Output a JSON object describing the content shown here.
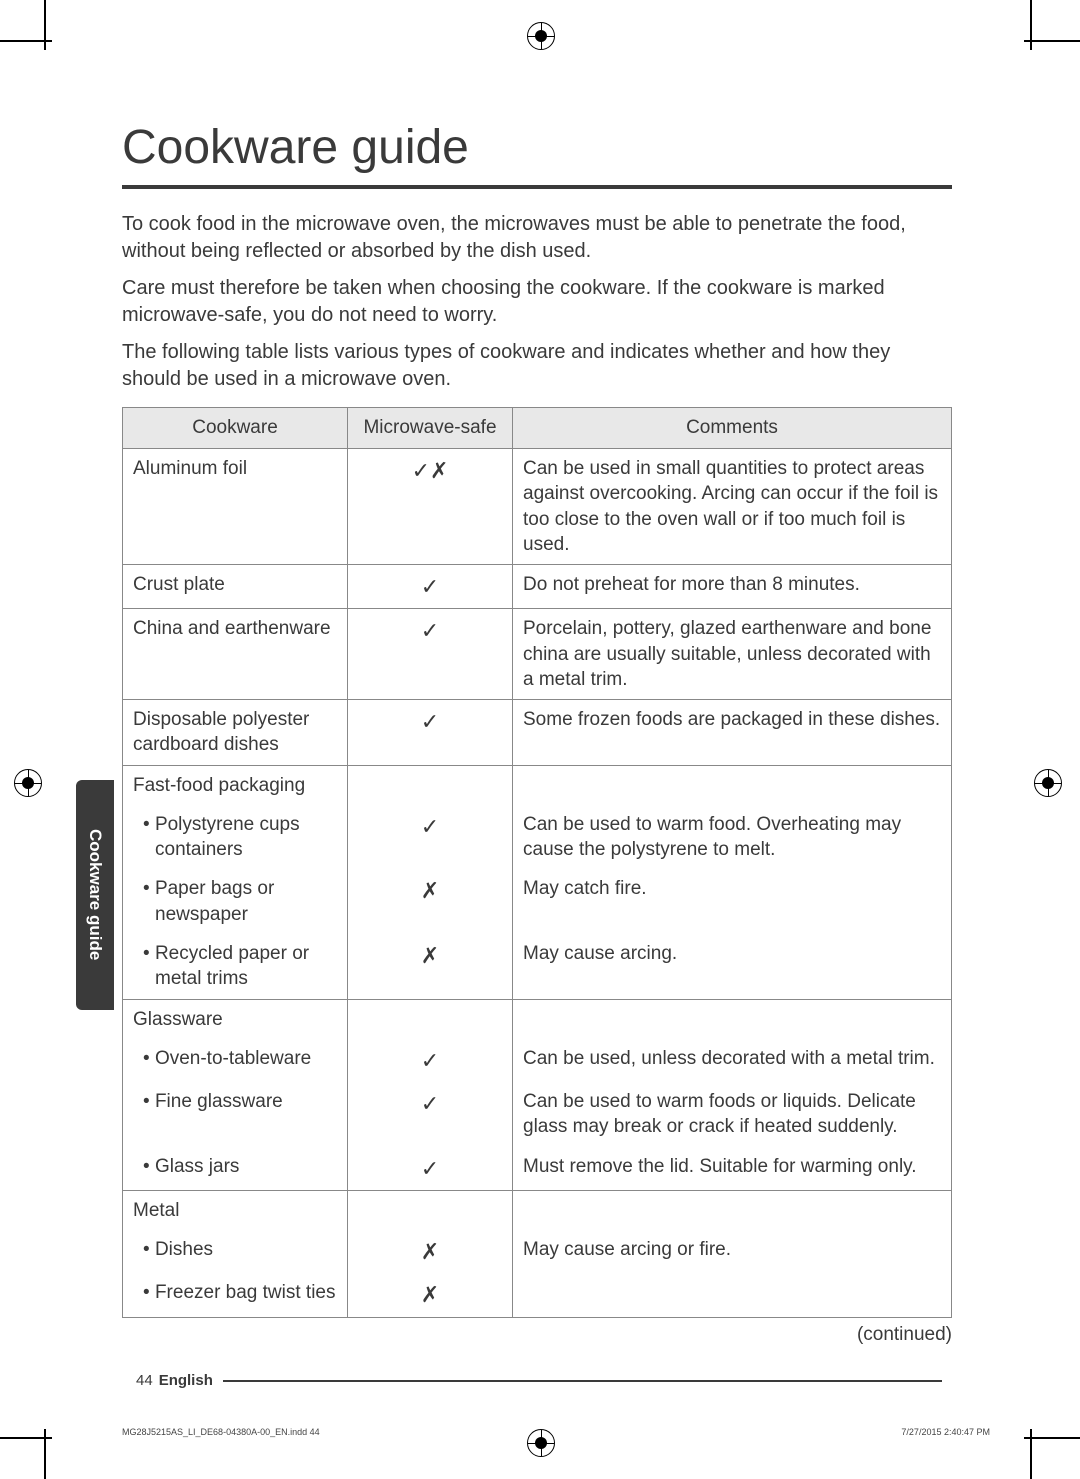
{
  "title": "Cookware guide",
  "intro": {
    "p1": "To cook food in the microwave oven, the microwaves must be able to penetrate the food, without being reflected or absorbed by the dish used.",
    "p2": "Care must therefore be taken when choosing the cookware. If the cookware is marked microwave-safe, you do not need to worry.",
    "p3": "The following table lists various types of cookware and indicates whether and how they should be used in a microwave oven."
  },
  "table": {
    "headers": {
      "cw": "Cookware",
      "ms": "Microwave-safe",
      "cm": "Comments"
    },
    "rows": [
      {
        "cw": "Aluminum foil",
        "ms": "✓✗",
        "cm": "Can be used in small quantities to protect areas against overcooking. Arcing can occur if the foil is too close to the oven wall or if too much foil is used."
      },
      {
        "cw": "Crust plate",
        "ms": "✓",
        "cm": "Do not preheat for more than 8 minutes."
      },
      {
        "cw": "China and earthenware",
        "ms": "✓",
        "cm": "Porcelain, pottery, glazed earthenware and bone china are usually suitable, unless decorated with a metal trim."
      },
      {
        "cw": "Disposable polyester cardboard dishes",
        "ms": "✓",
        "cm": "Some frozen foods are packaged in these dishes."
      },
      {
        "group": "Fast-food packaging",
        "items": [
          {
            "cw": "Polystyrene cups containers",
            "ms": "✓",
            "cm": "Can be used to warm food. Overheating may cause the polystyrene to melt."
          },
          {
            "cw": "Paper bags or newspaper",
            "ms": "✗",
            "cm": "May catch fire."
          },
          {
            "cw": "Recycled paper or metal trims",
            "ms": "✗",
            "cm": "May cause arcing."
          }
        ]
      },
      {
        "group": "Glassware",
        "items": [
          {
            "cw": "Oven-to-tableware",
            "ms": "✓",
            "cm": "Can be used, unless decorated with a metal trim."
          },
          {
            "cw": "Fine glassware",
            "ms": "✓",
            "cm": "Can be used to warm foods or liquids. Delicate glass may break or crack if heated suddenly."
          },
          {
            "cw": "Glass jars",
            "ms": "✓",
            "cm": "Must remove the lid. Suitable for warming only."
          }
        ]
      },
      {
        "group": "Metal",
        "items": [
          {
            "cw": "Dishes",
            "ms": "✗",
            "cm": "May cause arcing or fire."
          },
          {
            "cw": "Freezer bag twist ties",
            "ms": "✗",
            "cm": ""
          }
        ]
      }
    ]
  },
  "continued": "(continued)",
  "side_tab": "Cookware guide",
  "page_number": "44",
  "language": "English",
  "print_file": "MG28J5215AS_LI_DE68-04380A-00_EN.indd   44",
  "print_ts": "7/27/2015   2:40:47 PM"
}
